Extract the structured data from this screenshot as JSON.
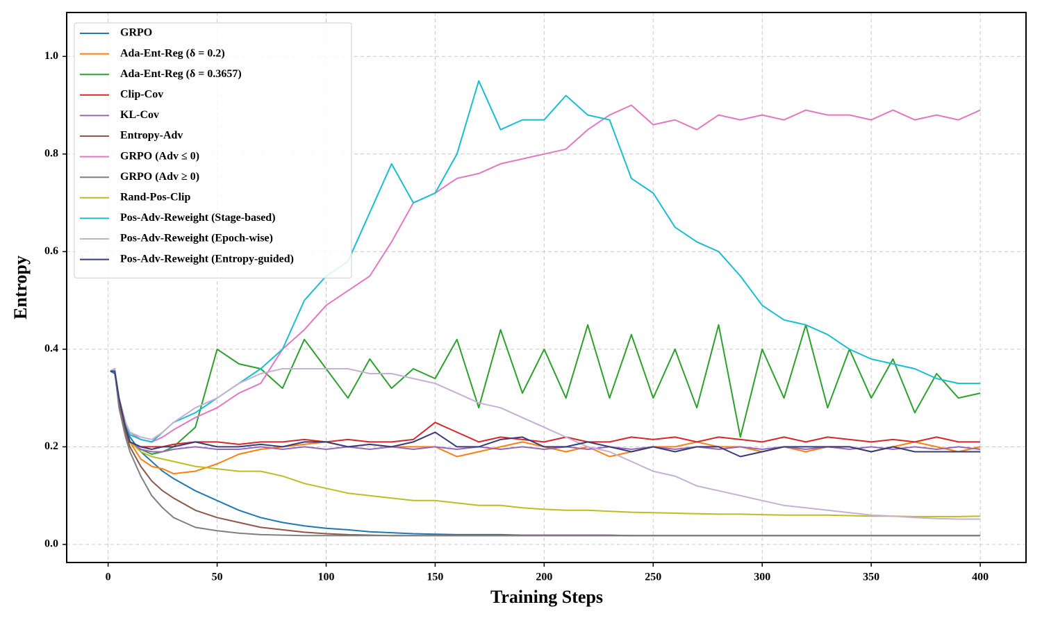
{
  "chart_data": {
    "type": "line",
    "x_label": "Training Steps",
    "y_label": "Entropy",
    "x": [
      1,
      3,
      5,
      8,
      10,
      15,
      20,
      25,
      30,
      40,
      50,
      60,
      70,
      80,
      90,
      100,
      110,
      120,
      130,
      140,
      150,
      160,
      170,
      180,
      190,
      200,
      210,
      220,
      230,
      240,
      250,
      260,
      270,
      280,
      290,
      300,
      310,
      320,
      330,
      340,
      350,
      360,
      370,
      380,
      390,
      400
    ],
    "xlim": [
      -19,
      421
    ],
    "ylim": [
      -0.037,
      1.09
    ],
    "xticks": [
      0,
      50,
      100,
      150,
      200,
      250,
      300,
      350,
      400
    ],
    "yticks": [
      {
        "value": 0,
        "label": "0.0"
      },
      0.2,
      0.4,
      0.6,
      0.8,
      {
        "value": 1,
        "label": "1.0"
      }
    ],
    "grid": true,
    "legend": "upper left",
    "series": [
      {
        "name": "GRPO",
        "color": "#1f77b4",
        "values": [
          0.355,
          0.35,
          0.3,
          0.25,
          0.22,
          0.19,
          0.17,
          0.15,
          0.135,
          0.11,
          0.09,
          0.07,
          0.055,
          0.045,
          0.038,
          0.033,
          0.03,
          0.026,
          0.024,
          0.022,
          0.021,
          0.02,
          0.02,
          0.02,
          0.019,
          0.019,
          0.019,
          0.019,
          0.019,
          0.018,
          0.018,
          0.018,
          0.018,
          0.018,
          0.018,
          0.018,
          0.018,
          0.018,
          0.018,
          0.018,
          0.018,
          0.018,
          0.018,
          0.018,
          0.018,
          0.018
        ]
      },
      {
        "name": "Ada-Ent-Reg (δ = 0.2)",
        "color": "#ff7f0e",
        "values": [
          0.355,
          0.355,
          0.3,
          0.24,
          0.21,
          0.175,
          0.16,
          0.155,
          0.145,
          0.15,
          0.165,
          0.185,
          0.195,
          0.2,
          0.205,
          0.21,
          0.2,
          0.205,
          0.2,
          0.2,
          0.2,
          0.18,
          0.19,
          0.2,
          0.21,
          0.2,
          0.19,
          0.2,
          0.18,
          0.19,
          0.2,
          0.2,
          0.21,
          0.2,
          0.2,
          0.19,
          0.2,
          0.19,
          0.2,
          0.2,
          0.19,
          0.2,
          0.21,
          0.2,
          0.19,
          0.2
        ]
      },
      {
        "name": "Ada-Ent-Reg (δ = 0.3657)",
        "color": "#2ca02c",
        "values": [
          0.355,
          0.36,
          0.3,
          0.24,
          0.21,
          0.195,
          0.185,
          0.19,
          0.2,
          0.24,
          0.4,
          0.37,
          0.36,
          0.32,
          0.42,
          0.36,
          0.3,
          0.38,
          0.32,
          0.36,
          0.34,
          0.42,
          0.28,
          0.44,
          0.31,
          0.4,
          0.3,
          0.45,
          0.3,
          0.43,
          0.3,
          0.4,
          0.28,
          0.45,
          0.22,
          0.4,
          0.3,
          0.45,
          0.28,
          0.4,
          0.3,
          0.38,
          0.27,
          0.35,
          0.3,
          0.31
        ]
      },
      {
        "name": "Clip-Cov",
        "color": "#d62728",
        "values": [
          0.355,
          0.355,
          0.3,
          0.24,
          0.21,
          0.2,
          0.2,
          0.2,
          0.205,
          0.21,
          0.21,
          0.205,
          0.21,
          0.21,
          0.215,
          0.21,
          0.215,
          0.21,
          0.21,
          0.215,
          0.25,
          0.23,
          0.21,
          0.22,
          0.215,
          0.21,
          0.22,
          0.21,
          0.21,
          0.22,
          0.215,
          0.22,
          0.21,
          0.22,
          0.215,
          0.21,
          0.22,
          0.21,
          0.22,
          0.215,
          0.21,
          0.215,
          0.21,
          0.22,
          0.21,
          0.21
        ]
      },
      {
        "name": "KL-Cov",
        "color": "#9467bd",
        "values": [
          0.355,
          0.355,
          0.3,
          0.24,
          0.21,
          0.195,
          0.19,
          0.19,
          0.195,
          0.2,
          0.195,
          0.195,
          0.2,
          0.195,
          0.2,
          0.195,
          0.2,
          0.195,
          0.2,
          0.195,
          0.2,
          0.195,
          0.2,
          0.195,
          0.2,
          0.195,
          0.2,
          0.195,
          0.2,
          0.195,
          0.2,
          0.195,
          0.2,
          0.195,
          0.2,
          0.195,
          0.2,
          0.195,
          0.2,
          0.195,
          0.2,
          0.195,
          0.2,
          0.195,
          0.2,
          0.195
        ]
      },
      {
        "name": "Entropy-Adv",
        "color": "#8c564b",
        "values": [
          0.355,
          0.355,
          0.29,
          0.23,
          0.2,
          0.16,
          0.13,
          0.11,
          0.095,
          0.07,
          0.055,
          0.045,
          0.035,
          0.03,
          0.025,
          0.022,
          0.02,
          0.019,
          0.018,
          0.018,
          0.018,
          0.018,
          0.018,
          0.018,
          0.018,
          0.018,
          0.018,
          0.018,
          0.018,
          0.018,
          0.018,
          0.018,
          0.018,
          0.018,
          0.018,
          0.018,
          0.018,
          0.018,
          0.018,
          0.018,
          0.018,
          0.018,
          0.018,
          0.018,
          0.018,
          0.018
        ]
      },
      {
        "name": "GRPO (Adv ≤ 0)",
        "color": "#e377c2",
        "values": [
          0.355,
          0.36,
          0.3,
          0.25,
          0.23,
          0.215,
          0.21,
          0.22,
          0.235,
          0.26,
          0.28,
          0.31,
          0.33,
          0.4,
          0.44,
          0.49,
          0.52,
          0.55,
          0.62,
          0.7,
          0.72,
          0.75,
          0.76,
          0.78,
          0.79,
          0.8,
          0.81,
          0.85,
          0.88,
          0.9,
          0.86,
          0.87,
          0.85,
          0.88,
          0.87,
          0.88,
          0.87,
          0.89,
          0.88,
          0.88,
          0.87,
          0.89,
          0.87,
          0.88,
          0.87,
          0.89
        ]
      },
      {
        "name": "GRPO (Adv ≥ 0)",
        "color": "#7f7f7f",
        "values": [
          0.355,
          0.355,
          0.28,
          0.22,
          0.19,
          0.14,
          0.1,
          0.075,
          0.055,
          0.035,
          0.028,
          0.023,
          0.02,
          0.019,
          0.018,
          0.018,
          0.018,
          0.018,
          0.018,
          0.018,
          0.018,
          0.018,
          0.018,
          0.018,
          0.018,
          0.018,
          0.018,
          0.018,
          0.018,
          0.018,
          0.018,
          0.018,
          0.018,
          0.018,
          0.018,
          0.018,
          0.018,
          0.018,
          0.018,
          0.018,
          0.018,
          0.018,
          0.018,
          0.018,
          0.018,
          0.018
        ]
      },
      {
        "name": "Rand-Pos-Clip",
        "color": "#bcbd22",
        "values": [
          0.355,
          0.355,
          0.3,
          0.24,
          0.21,
          0.19,
          0.18,
          0.175,
          0.17,
          0.16,
          0.155,
          0.15,
          0.15,
          0.14,
          0.125,
          0.115,
          0.105,
          0.1,
          0.095,
          0.09,
          0.09,
          0.085,
          0.08,
          0.08,
          0.075,
          0.072,
          0.07,
          0.07,
          0.068,
          0.066,
          0.065,
          0.064,
          0.063,
          0.062,
          0.062,
          0.061,
          0.06,
          0.06,
          0.06,
          0.059,
          0.058,
          0.058,
          0.057,
          0.057,
          0.057,
          0.058
        ]
      },
      {
        "name": "Pos-Adv-Reweight (Stage-based)",
        "color": "#17becf",
        "values": [
          0.355,
          0.36,
          0.3,
          0.25,
          0.225,
          0.215,
          0.21,
          0.23,
          0.25,
          0.27,
          0.3,
          0.33,
          0.36,
          0.4,
          0.5,
          0.55,
          0.58,
          0.68,
          0.78,
          0.7,
          0.72,
          0.8,
          0.95,
          0.85,
          0.87,
          0.87,
          0.92,
          0.88,
          0.87,
          0.75,
          0.72,
          0.65,
          0.62,
          0.6,
          0.55,
          0.49,
          0.46,
          0.45,
          0.43,
          0.4,
          0.38,
          0.37,
          0.36,
          0.34,
          0.33,
          0.33
        ]
      },
      {
        "name": "Pos-Adv-Reweight (Epoch-wise)",
        "color": "#c5b0d5",
        "values": [
          0.355,
          0.36,
          0.3,
          0.25,
          0.23,
          0.22,
          0.215,
          0.23,
          0.25,
          0.28,
          0.3,
          0.33,
          0.35,
          0.36,
          0.36,
          0.36,
          0.36,
          0.35,
          0.35,
          0.34,
          0.33,
          0.31,
          0.29,
          0.28,
          0.26,
          0.24,
          0.22,
          0.2,
          0.19,
          0.17,
          0.15,
          0.14,
          0.12,
          0.11,
          0.1,
          0.09,
          0.08,
          0.075,
          0.07,
          0.065,
          0.06,
          0.058,
          0.055,
          0.053,
          0.052,
          0.052
        ]
      },
      {
        "name": "Pos-Adv-Reweight (Entropy-guided)",
        "color": "#393b79",
        "values": [
          0.355,
          0.355,
          0.3,
          0.24,
          0.21,
          0.2,
          0.195,
          0.2,
          0.2,
          0.21,
          0.2,
          0.2,
          0.205,
          0.2,
          0.21,
          0.21,
          0.2,
          0.205,
          0.2,
          0.21,
          0.23,
          0.2,
          0.2,
          0.215,
          0.22,
          0.2,
          0.2,
          0.21,
          0.2,
          0.19,
          0.2,
          0.19,
          0.2,
          0.2,
          0.18,
          0.19,
          0.2,
          0.2,
          0.2,
          0.2,
          0.19,
          0.2,
          0.19,
          0.19,
          0.19,
          0.19
        ]
      }
    ]
  }
}
